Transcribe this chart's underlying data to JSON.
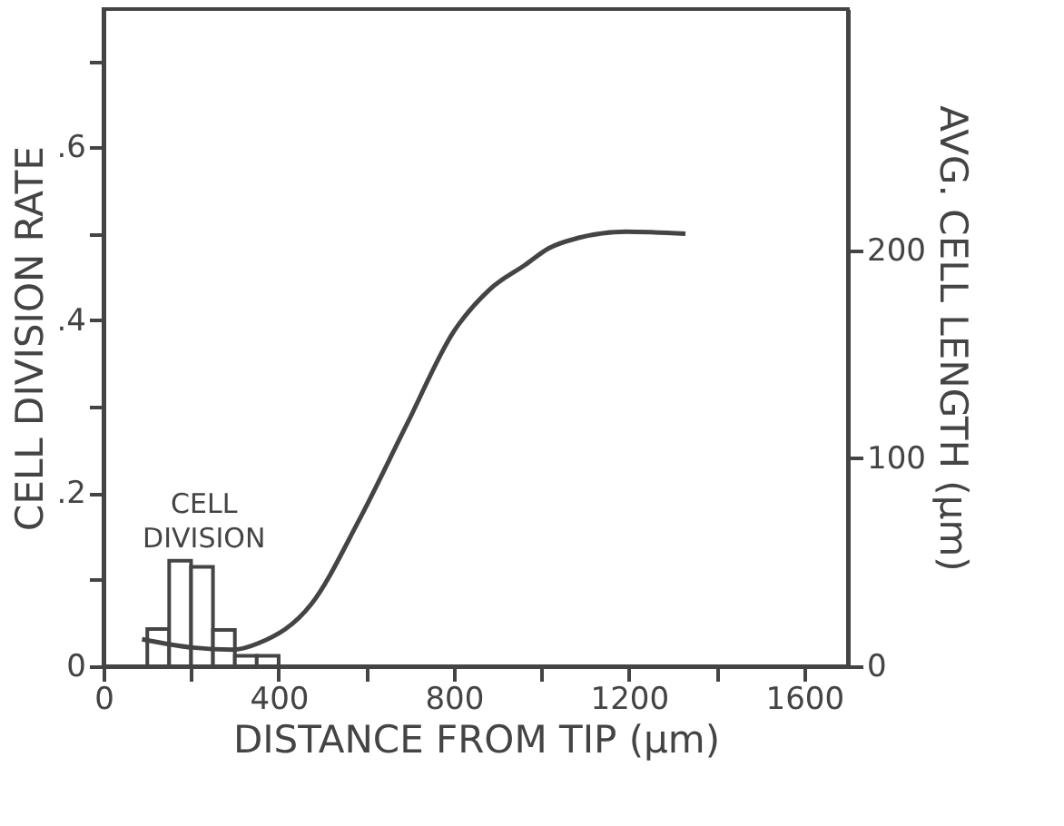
{
  "chart_data": {
    "type": "histogram",
    "xlabel": "DISTANCE FROM TIP (µm)",
    "ylabel": "CELL DIVISION RATE",
    "y2label": "AVG. CELL LENGTH (µm)",
    "bins": [
      100,
      150,
      200,
      250,
      300,
      350,
      400
    ],
    "values": [
      0.043,
      0.122,
      0.115,
      0.042,
      0.012,
      0.012
    ],
    "color": "#444444",
    "series": [
      {
        "type": "line",
        "axis": "y2",
        "color": "#444444",
        "x": [
          88,
          203,
          298,
          353,
          475,
          583,
          692,
          800,
          881,
          963,
          1017,
          1085,
          1193,
          1329
        ],
        "values": [
          13,
          9,
          8,
          11,
          30,
          70,
          116,
          161,
          181,
          193,
          201,
          206,
          209,
          208
        ]
      }
    ],
    "annotations": [
      "CELL DIVISION"
    ],
    "xlim": [
      0,
      1700
    ],
    "ylim": [
      0,
      0.76
    ],
    "y2lim": [
      0,
      316
    ],
    "xticks": [
      0,
      {
        "value": 200,
        "label": null
      },
      400,
      {
        "value": 600,
        "label": null
      },
      800,
      {
        "value": 1000,
        "label": null
      },
      1200,
      {
        "value": 1400,
        "label": null
      },
      1600
    ],
    "yticks": [
      0,
      {
        "value": 0.1,
        "label": null
      },
      {
        "value": 0.2,
        "label": ".2"
      },
      {
        "value": 0.3,
        "label": null
      },
      {
        "value": 0.4,
        "label": ".4"
      },
      {
        "value": 0.5,
        "label": null
      },
      {
        "value": 0.6,
        "label": ".6"
      },
      {
        "value": 0.7,
        "label": null
      }
    ],
    "y2ticks": [
      0,
      100,
      200
    ],
    "grid": false
  }
}
